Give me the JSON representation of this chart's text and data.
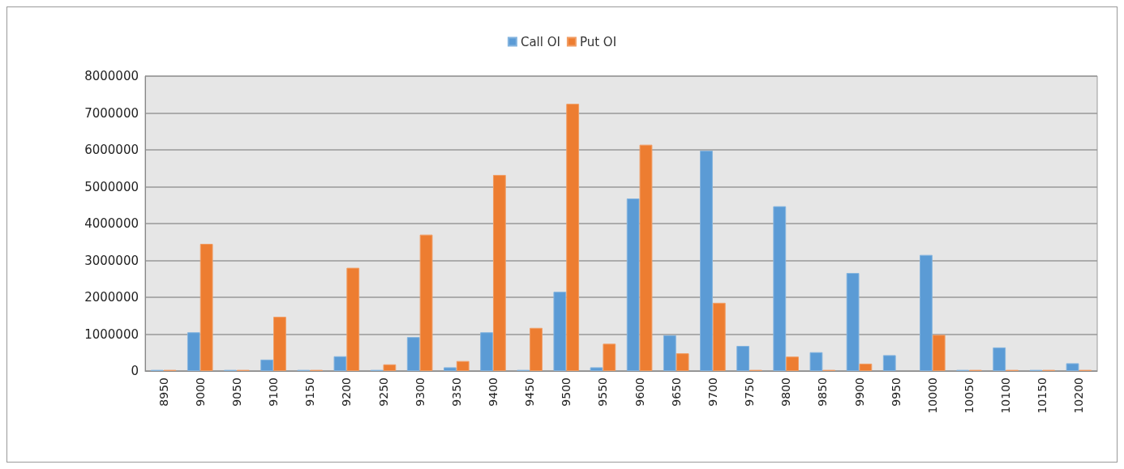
{
  "chart_data": {
    "type": "bar",
    "categories": [
      "8950",
      "9000",
      "9050",
      "9100",
      "9150",
      "9200",
      "9250",
      "9300",
      "9350",
      "9400",
      "9450",
      "9500",
      "9550",
      "9600",
      "9650",
      "9700",
      "9750",
      "9800",
      "9850",
      "9900",
      "9950",
      "10000",
      "10050",
      "10100",
      "10150",
      "10200"
    ],
    "series": [
      {
        "name": "Call OI",
        "color": "#5b9bd5",
        "values": [
          30000,
          1050000,
          30000,
          310000,
          30000,
          400000,
          30000,
          920000,
          100000,
          1050000,
          30000,
          2150000,
          100000,
          4680000,
          970000,
          5980000,
          680000,
          4470000,
          510000,
          2660000,
          430000,
          3150000,
          30000,
          640000,
          30000,
          210000
        ]
      },
      {
        "name": "Put OI",
        "color": "#ed7d31",
        "values": [
          30000,
          3450000,
          30000,
          1470000,
          30000,
          2800000,
          180000,
          3700000,
          270000,
          5320000,
          1170000,
          7250000,
          740000,
          6140000,
          480000,
          1850000,
          30000,
          390000,
          30000,
          200000,
          null,
          980000,
          30000,
          30000,
          30000,
          30000
        ]
      }
    ],
    "ylim": [
      0,
      8000000
    ],
    "yticks": [
      0,
      1000000,
      2000000,
      3000000,
      4000000,
      5000000,
      6000000,
      7000000,
      8000000
    ],
    "grid": "y",
    "legend": "top"
  }
}
